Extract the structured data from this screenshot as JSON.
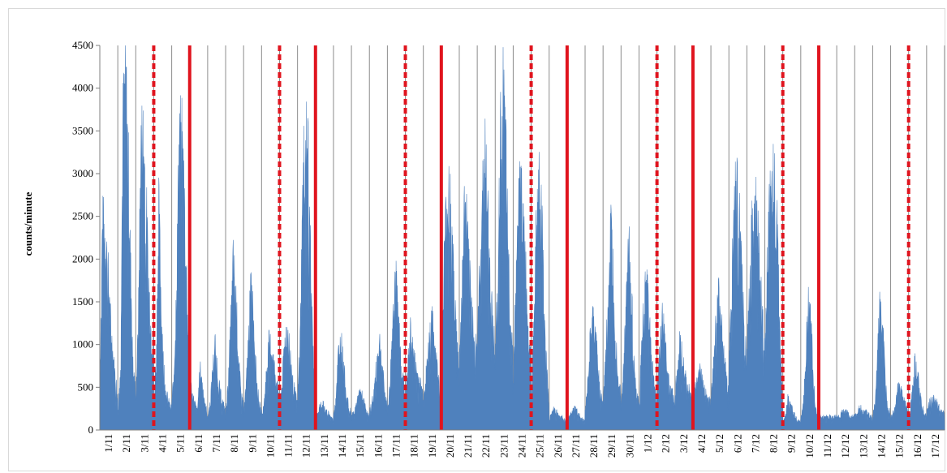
{
  "chart_data": {
    "type": "area",
    "title": "",
    "xlabel": "",
    "ylabel": "counts/minute",
    "ylim": [
      0,
      4500
    ],
    "yticks": [
      0,
      500,
      1000,
      1500,
      2000,
      2500,
      3000,
      3500,
      4000,
      4500
    ],
    "categories": [
      "1/11",
      "2/11",
      "3/11",
      "4/11",
      "5/11",
      "6/11",
      "7/11",
      "8/11",
      "9/11",
      "10/11",
      "11/11",
      "12/11",
      "13/11",
      "14/11",
      "15/11",
      "16/11",
      "17/11",
      "18/11",
      "19/11",
      "20/11",
      "21/11",
      "22/11",
      "23/11",
      "24/11",
      "25/11",
      "26/11",
      "27/11",
      "28/11",
      "29/11",
      "30/11",
      "1/12",
      "2/12",
      "3/12",
      "4/12",
      "5/12",
      "6/12",
      "7/12",
      "8/12",
      "9/12",
      "10/12",
      "11/12",
      "12/12",
      "13/12",
      "14/12",
      "15/12",
      "16/12",
      "17/12"
    ],
    "day_gridlines": true,
    "fill_color": "#4f81bd",
    "marker_color": "#e0141e",
    "daily_profile": [
      [
        400,
        2320,
        2200,
        1900,
        1300,
        900,
        600,
        400
      ],
      [
        300,
        600,
        3400,
        3980,
        3100,
        1800,
        800,
        400
      ],
      [
        300,
        1200,
        3200,
        3300,
        2600,
        1700,
        1100,
        900
      ],
      [
        200,
        900,
        2500,
        1300,
        700,
        400,
        300,
        250
      ],
      [
        300,
        700,
        1800,
        3400,
        3200,
        2600,
        1500,
        800
      ],
      [
        600,
        400,
        300,
        200,
        700,
        500,
        300,
        150
      ],
      [
        150,
        300,
        700,
        1000,
        600,
        400,
        300,
        200
      ],
      [
        200,
        500,
        1200,
        1900,
        1500,
        800,
        400,
        300
      ],
      [
        200,
        500,
        1100,
        1700,
        1200,
        600,
        300,
        200
      ],
      [
        200,
        300,
        700,
        1000,
        900,
        700,
        500,
        400
      ],
      [
        300,
        500,
        1000,
        1200,
        900,
        600,
        400,
        300
      ],
      [
        300,
        1000,
        2600,
        3400,
        3300,
        2000,
        900,
        500
      ],
      [
        100,
        200,
        300,
        300,
        200,
        200,
        150,
        100
      ],
      [
        150,
        400,
        900,
        1000,
        700,
        400,
        250,
        200
      ],
      [
        150,
        200,
        300,
        400,
        400,
        300,
        200,
        150
      ],
      [
        200,
        300,
        500,
        800,
        1000,
        700,
        400,
        300
      ],
      [
        200,
        500,
        1200,
        1800,
        1400,
        900,
        600,
        400
      ],
      [
        400,
        700,
        1100,
        900,
        700,
        600,
        500,
        400
      ],
      [
        400,
        600,
        900,
        1250,
        1100,
        800,
        600,
        500
      ],
      [
        500,
        1800,
        2500,
        2800,
        2300,
        1600,
        1000,
        700
      ],
      [
        800,
        1500,
        2500,
        2300,
        1700,
        1300,
        1100,
        1000
      ],
      [
        900,
        1800,
        2600,
        3100,
        2500,
        1700,
        1200,
        900
      ],
      [
        800,
        1600,
        3200,
        3750,
        3200,
        2000,
        1300,
        800
      ],
      [
        700,
        1500,
        2500,
        2750,
        2400,
        1700,
        1100,
        800
      ],
      [
        300,
        1100,
        2300,
        2800,
        2400,
        1500,
        700,
        300
      ],
      [
        100,
        200,
        250,
        200,
        150,
        150,
        120,
        100
      ],
      [
        100,
        150,
        200,
        250,
        200,
        150,
        120,
        100
      ],
      [
        200,
        500,
        1000,
        1250,
        1100,
        700,
        400,
        300
      ],
      [
        300,
        800,
        1500,
        2300,
        1800,
        1000,
        600,
        400
      ],
      [
        300,
        700,
        1400,
        2200,
        1600,
        800,
        400,
        300
      ],
      [
        300,
        900,
        1500,
        1750,
        1300,
        800,
        500,
        300
      ],
      [
        400,
        900,
        1250,
        1100,
        700,
        500,
        400,
        300
      ],
      [
        400,
        700,
        1000,
        800,
        600,
        500,
        400,
        350
      ],
      [
        350,
        500,
        700,
        650,
        500,
        400,
        350,
        300
      ],
      [
        400,
        700,
        1200,
        1500,
        1300,
        900,
        600,
        400
      ],
      [
        700,
        1500,
        2500,
        2750,
        2400,
        1700,
        1100,
        800
      ],
      [
        800,
        1600,
        2400,
        2650,
        2300,
        1800,
        1300,
        900
      ],
      [
        900,
        1900,
        2600,
        2850,
        2700,
        2000,
        1000,
        200
      ],
      [
        100,
        150,
        350,
        300,
        200,
        150,
        100,
        100
      ],
      [
        150,
        300,
        900,
        1450,
        1200,
        500,
        200,
        150
      ],
      [
        150,
        150,
        150,
        150,
        150,
        150,
        150,
        150
      ],
      [
        150,
        150,
        200,
        200,
        200,
        150,
        150,
        150
      ],
      [
        150,
        200,
        250,
        250,
        200,
        200,
        150,
        150
      ],
      [
        150,
        300,
        900,
        1500,
        1100,
        500,
        250,
        200
      ],
      [
        150,
        200,
        300,
        500,
        450,
        350,
        250,
        200
      ],
      [
        150,
        300,
        700,
        800,
        500,
        300,
        200,
        150
      ],
      [
        200,
        300,
        350,
        350,
        300,
        250,
        200,
        180
      ]
    ],
    "solid_markers": [
      "6/11",
      "13/11",
      "20/11",
      "27/11",
      "4/12",
      "11/12"
    ],
    "dashed_markers": [
      "4/11",
      "11/11",
      "18/11",
      "25/11",
      "2/12",
      "9/12",
      "16/12"
    ]
  }
}
